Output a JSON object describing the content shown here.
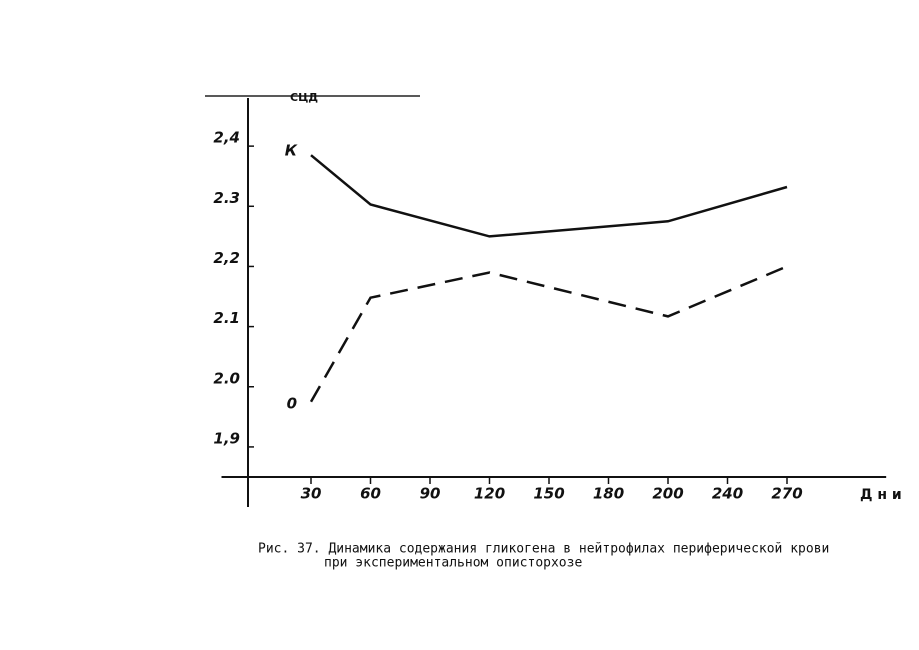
{
  "chart_data": {
    "type": "line",
    "y_label": "СЦД",
    "x_label": "Д н и",
    "caption": [
      "Рис. 37. Динамика содержания гликогена в нейтрофилах периферической крови",
      "при экспериментальном описторхозе"
    ],
    "xlim": [
      0,
      320
    ],
    "xticks": [
      30,
      60,
      90,
      120,
      150,
      180,
      200,
      240,
      270
    ],
    "ylim": [
      1.85,
      2.48
    ],
    "yticks": [
      {
        "value": 1.9,
        "label": "1,9"
      },
      {
        "value": 2.0,
        "label": "2.0"
      },
      {
        "value": 2.1,
        "label": "2.1"
      },
      {
        "value": 2.2,
        "label": "2,2"
      },
      {
        "value": 2.3,
        "label": "2.3"
      },
      {
        "value": 2.4,
        "label": "2,4"
      }
    ],
    "series": [
      {
        "name": "К",
        "color": "#111111",
        "dash": false,
        "x": [
          30,
          60,
          120,
          200,
          270
        ],
        "values": [
          2.385,
          2.303,
          2.25,
          2.275,
          2.332
        ]
      },
      {
        "name": "0",
        "color": "#111111",
        "dash": true,
        "x": [
          30,
          60,
          120,
          200,
          270
        ],
        "values": [
          1.975,
          2.148,
          2.19,
          2.117,
          2.2
        ]
      }
    ]
  }
}
